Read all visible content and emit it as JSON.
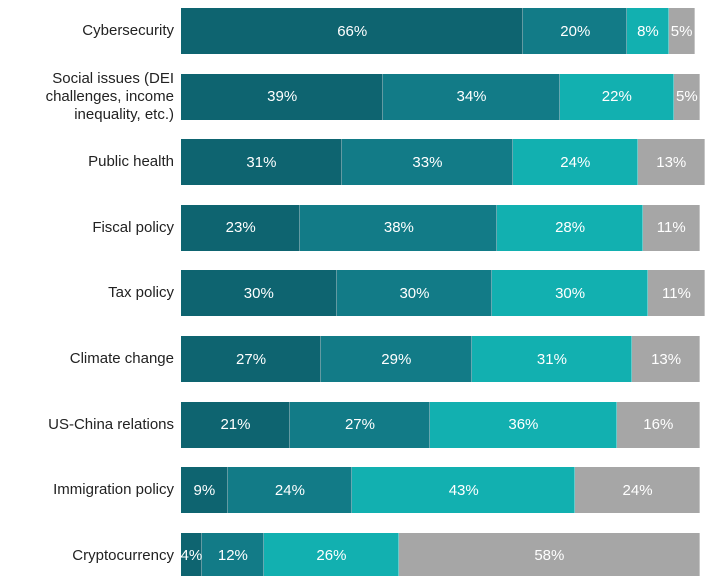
{
  "chart_data": {
    "type": "stacked-bar-horizontal",
    "categories": [
      "Cybersecurity",
      "Social issues (DEI challenges, income inequality, etc.)",
      "Public health",
      "Fiscal policy",
      "Tax policy",
      "Climate change",
      "US-China relations",
      "Immigration policy",
      "Cryptocurrency"
    ],
    "series": [
      {
        "color": "#0e6470",
        "values": [
          66,
          39,
          31,
          23,
          30,
          27,
          21,
          9,
          4
        ],
        "value_labels": [
          "66%",
          "39%",
          "31%",
          "23%",
          "30%",
          "27%",
          "21%",
          "9%",
          "4%"
        ]
      },
      {
        "color": "#127b87",
        "values": [
          20,
          34,
          33,
          38,
          30,
          29,
          27,
          24,
          12
        ],
        "value_labels": [
          "20%",
          "34%",
          "33%",
          "38%",
          "30%",
          "29%",
          "27%",
          "24%",
          "12%"
        ]
      },
      {
        "color": "#12b0b0",
        "values": [
          8,
          22,
          24,
          28,
          30,
          31,
          36,
          43,
          26
        ],
        "value_labels": [
          "8%",
          "22%",
          "24%",
          "28%",
          "30%",
          "31%",
          "36%",
          "43%",
          "26%"
        ]
      },
      {
        "color": "#a6a6a6",
        "values": [
          5,
          5,
          13,
          11,
          11,
          13,
          16,
          24,
          58
        ],
        "value_labels": [
          "5%",
          "5%",
          "13%",
          "11%",
          "11%",
          "13%",
          "16%",
          "24%",
          "58%"
        ]
      }
    ]
  }
}
